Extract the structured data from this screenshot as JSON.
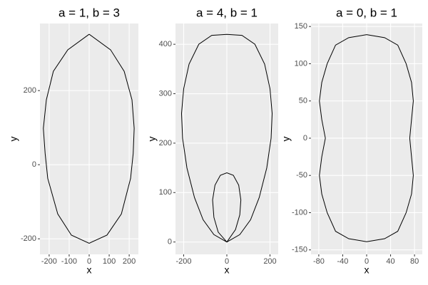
{
  "chart_data": [
    {
      "type": "path",
      "title": "a = 1, b = 3",
      "xlabel": "x",
      "ylabel": "y",
      "color": "#000000",
      "xlim": [
        -246,
        246
      ],
      "ylim": [
        -242,
        381
      ],
      "xticks": [
        -200,
        -100,
        0,
        100,
        200
      ],
      "yticks": [
        -200,
        0,
        200
      ],
      "x": [
        0,
        107,
        175,
        214,
        225,
        220,
        207,
        161,
        89,
        0,
        -89,
        -157,
        -207,
        -220,
        -229,
        -214,
        -179,
        -107,
        0
      ],
      "y": [
        352,
        310,
        252,
        175,
        98,
        30,
        -37,
        -133,
        -190,
        -212,
        -190,
        -133,
        -37,
        30,
        98,
        175,
        252,
        310,
        352
      ]
    },
    {
      "type": "path",
      "title": "a = 4, b = 1",
      "xlabel": "x",
      "ylabel": "y",
      "color": "#000000",
      "xlim": [
        -238,
        238
      ],
      "ylim": [
        -25,
        442
      ],
      "xticks": [
        -200,
        0,
        200
      ],
      "yticks": [
        0,
        100,
        200,
        300,
        400
      ],
      "x": [
        0,
        60,
        110,
        150,
        185,
        205,
        210,
        200,
        175,
        130,
        70,
        0,
        -70,
        -130,
        -175,
        -200,
        -210,
        -205,
        -185,
        -150,
        -110,
        -60,
        0,
        40,
        60,
        65,
        55,
        30,
        0,
        -30,
        -55,
        -66,
        -60,
        -40,
        0
      ],
      "y": [
        0,
        15,
        45,
        90,
        150,
        210,
        260,
        310,
        360,
        400,
        418,
        420,
        418,
        400,
        360,
        310,
        260,
        210,
        150,
        90,
        45,
        15,
        0,
        25,
        55,
        85,
        115,
        135,
        140,
        135,
        115,
        85,
        50,
        20,
        0
      ]
    },
    {
      "type": "path",
      "title": "a = 0, b = 1",
      "xlabel": "x",
      "ylabel": "y",
      "color": "#000000",
      "xlim": [
        -93,
        93
      ],
      "ylim": [
        -156,
        154
      ],
      "xticks": [
        -80,
        -40,
        0,
        40,
        80
      ],
      "yticks": [
        -150,
        -100,
        -50,
        0,
        50,
        100,
        150
      ],
      "x": [
        0,
        30,
        52,
        66,
        75,
        78,
        75,
        72,
        75,
        78,
        75,
        66,
        52,
        30,
        0,
        -30,
        -52,
        -66,
        -75,
        -79,
        -75,
        -69,
        -75,
        -79,
        -75,
        -66,
        -52,
        -30,
        0
      ],
      "y": [
        139,
        135,
        125,
        100,
        75,
        50,
        25,
        0,
        -25,
        -50,
        -75,
        -100,
        -125,
        -135,
        -139,
        -135,
        -125,
        -100,
        -75,
        -50,
        -25,
        0,
        25,
        50,
        75,
        100,
        125,
        135,
        139
      ]
    }
  ]
}
